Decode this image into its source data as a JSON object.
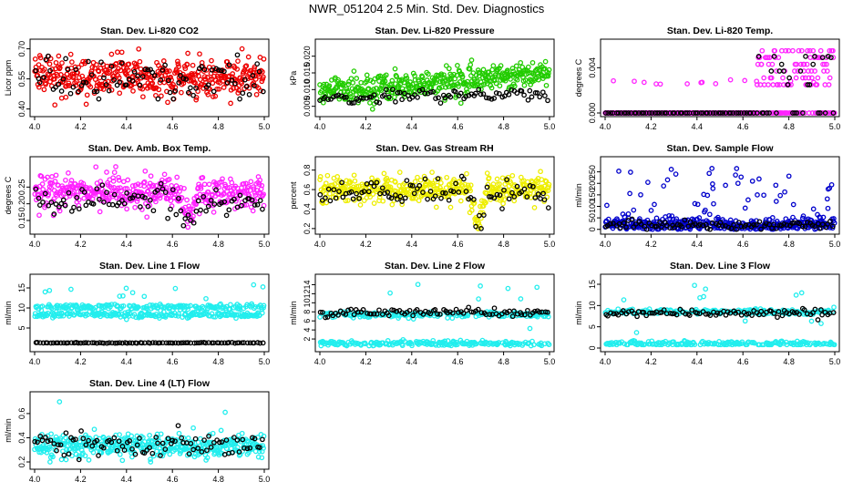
{
  "page": {
    "title": "NWR_051204  2.5 Min. Std. Dev. Diagnostics"
  },
  "colors": {
    "black": "#000000",
    "red": "#ee0000",
    "green": "#22cc00",
    "magenta": "#ff22ff",
    "yellow": "#eeee00",
    "blue": "#0000cc",
    "cyan": "#22eeee"
  },
  "chart_data": [
    {
      "type": "scatter",
      "title": "Stan. Dev. Li-820 CO2",
      "ylabel": "Licor ppm",
      "xlim": [
        4.0,
        5.0
      ],
      "ylim": [
        0.38,
        0.73
      ],
      "xticks": [
        "4.0",
        "4.2",
        "4.4",
        "4.6",
        "4.8",
        "5.0"
      ],
      "yticks": [
        "0.40",
        "0.55",
        "0.70"
      ],
      "series": [
        {
          "name": "main",
          "color": "red",
          "center": 0.56,
          "spread": 0.05,
          "range": [
            0.42,
            0.7
          ]
        },
        {
          "name": "overlay",
          "color": "black",
          "center": 0.55,
          "spread": 0.05,
          "range": [
            0.45,
            0.7
          ]
        }
      ]
    },
    {
      "type": "scatter",
      "title": "Stan. Dev. Li-820 Pressure",
      "ylabel": "kPa",
      "xlim": [
        4.0,
        5.0
      ],
      "ylim": [
        0.003,
        0.024
      ],
      "xticks": [
        "4.0",
        "4.2",
        "4.4",
        "4.6",
        "4.8",
        "5.0"
      ],
      "yticks": [
        "0.005",
        "0.010",
        "0.015",
        "0.020"
      ],
      "series": [
        {
          "name": "main",
          "color": "green",
          "center": 0.009,
          "spread": 0.002,
          "range": [
            0.004,
            0.023
          ]
        },
        {
          "name": "overlay",
          "color": "black",
          "center": 0.0075,
          "spread": 0.001,
          "range": [
            0.004,
            0.01
          ]
        }
      ]
    },
    {
      "type": "scatter",
      "title": "Stan. Dev. Li-820 Temp.",
      "ylabel": "degrees C",
      "xlim": [
        4.0,
        5.0
      ],
      "ylim": [
        0.0,
        0.0062
      ],
      "xticks": [
        "4.0",
        "4.2",
        "4.4",
        "4.6",
        "4.8",
        "5.0"
      ],
      "yticks": [
        "0.000",
        "0.004"
      ],
      "series": [
        {
          "name": "main",
          "color": "magenta",
          "center": 0.0,
          "spread": 0.0,
          "range": [
            0.0,
            0.006
          ]
        },
        {
          "name": "overlay",
          "color": "black",
          "center": 0.0,
          "spread": 0.0,
          "range": [
            0.0,
            0.005
          ]
        }
      ]
    },
    {
      "type": "scatter",
      "title": "Stan. Dev. Amb. Box Temp.",
      "ylabel": "degrees C",
      "xlim": [
        4.0,
        5.0
      ],
      "ylim": [
        0.12,
        0.33
      ],
      "xticks": [
        "4.0",
        "4.2",
        "4.4",
        "4.6",
        "4.8",
        "5.0"
      ],
      "yticks": [
        "0.15",
        "0.20",
        "0.25"
      ],
      "series": [
        {
          "name": "main",
          "color": "magenta",
          "center": 0.235,
          "spread": 0.025,
          "range": [
            0.13,
            0.32
          ]
        },
        {
          "name": "overlay",
          "color": "black",
          "center": 0.21,
          "spread": 0.02,
          "range": [
            0.13,
            0.26
          ]
        }
      ]
    },
    {
      "type": "scatter",
      "title": "Stan. Dev. Gas Stream RH",
      "ylabel": "percent",
      "xlim": [
        4.0,
        5.0
      ],
      "ylim": [
        0.18,
        0.9
      ],
      "xticks": [
        "4.0",
        "4.2",
        "4.4",
        "4.6",
        "4.8",
        "5.0"
      ],
      "yticks": [
        "0.2",
        "0.4",
        "0.6",
        "0.8"
      ],
      "series": [
        {
          "name": "main",
          "color": "yellow",
          "center": 0.6,
          "spread": 0.07,
          "range": [
            0.2,
            0.88
          ]
        },
        {
          "name": "overlay",
          "color": "black",
          "center": 0.57,
          "spread": 0.07,
          "range": [
            0.2,
            0.82
          ]
        }
      ]
    },
    {
      "type": "scatter",
      "title": "Stan. Dev. Sample Flow",
      "ylabel": "ml/min",
      "xlim": [
        4.0,
        5.0
      ],
      "ylim": [
        -5,
        300
      ],
      "xticks": [
        "4.0",
        "4.2",
        "4.4",
        "4.6",
        "4.8",
        "5.0"
      ],
      "yticks": [
        "0",
        "50",
        "100",
        "150",
        "200",
        "250"
      ],
      "series": [
        {
          "name": "main",
          "color": "blue",
          "center": 20,
          "spread": 15,
          "range": [
            0,
            290
          ]
        },
        {
          "name": "overlay",
          "color": "black",
          "center": 18,
          "spread": 10,
          "range": [
            0,
            60
          ]
        }
      ]
    },
    {
      "type": "scatter",
      "title": "Stan. Dev. Line 1 Flow",
      "ylabel": "ml/min",
      "xlim": [
        4.0,
        5.0
      ],
      "ylim": [
        0,
        17.5
      ],
      "xticks": [
        "4.0",
        "4.2",
        "4.4",
        "4.6",
        "4.8",
        "5.0"
      ],
      "yticks": [
        "5",
        "10",
        "15"
      ],
      "series": [
        {
          "name": "main",
          "color": "cyan",
          "center": 10,
          "spread": 1.0,
          "range": [
            1,
            17
          ]
        },
        {
          "name": "overlay",
          "color": "black",
          "center": 1.3,
          "spread": 0.05,
          "range": [
            1.2,
            1.4
          ]
        }
      ]
    },
    {
      "type": "scatter",
      "title": "Stan. Dev. Line 2 Flow",
      "ylabel": "ml/min",
      "xlim": [
        4.0,
        5.0
      ],
      "ylim": [
        0,
        15.5
      ],
      "xticks": [
        "4.0",
        "4.2",
        "4.4",
        "4.6",
        "4.8",
        "5.0"
      ],
      "yticks": [
        "2",
        "4",
        "6",
        "8",
        "10",
        "12",
        "14"
      ],
      "series": [
        {
          "name": "main",
          "color": "cyan",
          "center": 7.4,
          "spread": 0.4,
          "range": [
            0.5,
            15
          ]
        },
        {
          "name": "overlay",
          "color": "black",
          "center": 7.9,
          "spread": 0.4,
          "range": [
            6.0,
            9.0
          ]
        }
      ]
    },
    {
      "type": "scatter",
      "title": "Stan. Dev. Line 3 Flow",
      "ylabel": "ml/min",
      "xlim": [
        4.0,
        5.0
      ],
      "ylim": [
        0,
        16.5
      ],
      "xticks": [
        "4.0",
        "4.2",
        "4.4",
        "4.6",
        "4.8",
        "5.0"
      ],
      "yticks": [
        "0",
        "5",
        "10",
        "15"
      ],
      "series": [
        {
          "name": "main",
          "color": "cyan",
          "center": 8.5,
          "spread": 0.5,
          "range": [
            0.8,
            16
          ]
        },
        {
          "name": "overlay",
          "color": "black",
          "center": 8.2,
          "spread": 0.4,
          "range": [
            6.0,
            9.5
          ]
        }
      ]
    },
    {
      "type": "scatter",
      "title": "Stan. Dev. Line 4 (LT) Flow",
      "ylabel": "ml/min",
      "xlim": [
        4.0,
        5.0
      ],
      "ylim": [
        0.17,
        0.75
      ],
      "xticks": [
        "4.0",
        "4.2",
        "4.4",
        "4.6",
        "4.8",
        "5.0"
      ],
      "yticks": [
        "0.2",
        "0.4",
        "0.6"
      ],
      "series": [
        {
          "name": "main",
          "color": "cyan",
          "center": 0.33,
          "spread": 0.05,
          "range": [
            0.2,
            0.73
          ]
        },
        {
          "name": "overlay",
          "color": "black",
          "center": 0.34,
          "spread": 0.05,
          "range": [
            0.22,
            0.5
          ]
        }
      ]
    }
  ]
}
